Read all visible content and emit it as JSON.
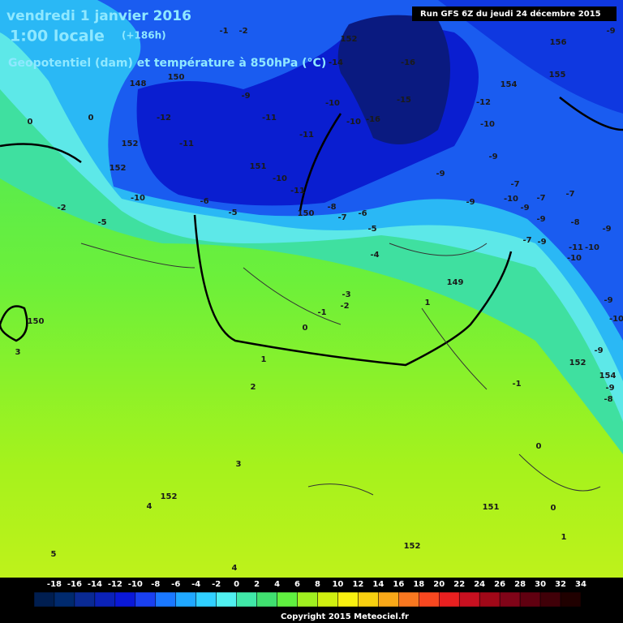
{
  "header": {
    "date": "vendredi 1 janvier 2016",
    "time": "1:00 locale",
    "lead": "(+186h)",
    "field": "Geopotentiel (dam) et température à 850hPa (°C)",
    "run": "Run GFS 6Z du jeudi 24 décembre 2015"
  },
  "map_labels": [
    "152",
    "-14",
    "-16",
    "156",
    "154",
    "155",
    "-9",
    "-1",
    "-2",
    "0",
    "0",
    "150",
    "148",
    "-9",
    "-12",
    "-11",
    "-11",
    "-10",
    "-10",
    "-16",
    "-15",
    "-11",
    "152",
    "152",
    "151",
    "-10",
    "-11",
    "150",
    "-8",
    "-7",
    "-6",
    "-5",
    "-4",
    "-12",
    "-10",
    "-9",
    "-9",
    "-9",
    "-7",
    "-10",
    "-7",
    "-7",
    "-9",
    "-9",
    "-8",
    "-9",
    "-7",
    "-9",
    "-11",
    "-10",
    "-10",
    "-9",
    "-10",
    "-9",
    "152",
    "154",
    "-9",
    "-8",
    "-6",
    "-5",
    "-10",
    "-5",
    "-2",
    "150",
    "3",
    "149",
    "-3",
    "-2",
    "-1",
    "1",
    "0",
    "1",
    "2",
    "-1",
    "3",
    "152",
    "4",
    "151",
    "0",
    "0",
    "1",
    "152",
    "5",
    "4",
    "4",
    "3"
  ],
  "colorbar": {
    "labels": [
      "-18",
      "-16",
      "-14",
      "-12",
      "-10",
      "-8",
      "-6",
      "-4",
      "-2",
      "0",
      "2",
      "4",
      "6",
      "8",
      "10",
      "12",
      "14",
      "16",
      "18",
      "20",
      "22",
      "24",
      "26",
      "28",
      "30",
      "32",
      "34"
    ],
    "colors": [
      "#001e50",
      "#002a6e",
      "#0a2a94",
      "#0b22b8",
      "#0a18d8",
      "#1a40f0",
      "#1a78ff",
      "#20a8ff",
      "#30d0ff",
      "#50f0f0",
      "#40e8a8",
      "#40e070",
      "#60f040",
      "#a0f020",
      "#d0f010",
      "#f8f010",
      "#f8d010",
      "#f8a818",
      "#f87820",
      "#f84820",
      "#e82020",
      "#c81020",
      "#a00818",
      "#800418",
      "#600010",
      "#400008",
      "#200000"
    ]
  },
  "footer": {
    "copyright": "Copyright 2015 Meteociel.fr"
  }
}
